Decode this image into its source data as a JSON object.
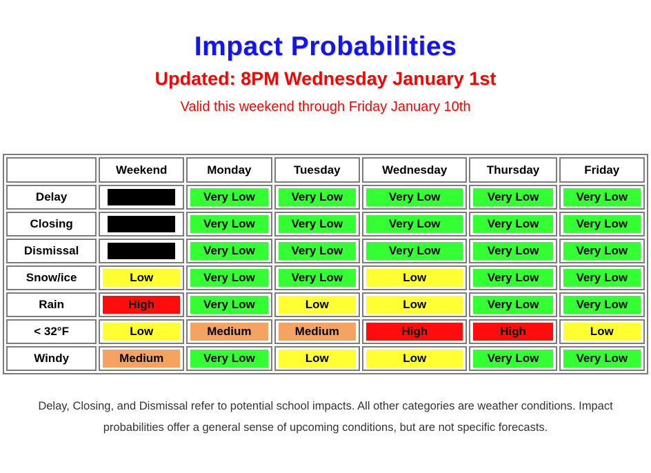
{
  "header": {
    "title": "Impact Probabilities",
    "updated": "Updated: 8PM Wednesday January 1st",
    "valid": "Valid this weekend through Friday January 10th"
  },
  "colors": {
    "title_blue": "#1414ee",
    "subtitle_red": "#ff0000",
    "very_low": "#33ff33",
    "low": "#ffff33",
    "medium": "#f4a460",
    "high": "#ff0d0d",
    "blackout": "#000000",
    "table_border": "#7b7b7b"
  },
  "chart_data": {
    "type": "table",
    "title": "Impact Probabilities",
    "subtitle": "Updated: 8PM Wednesday January 1st",
    "note": "Valid this weekend through Friday January 10th",
    "legend": {
      "very_low": "Very Low",
      "low": "Low",
      "medium": "Medium",
      "high": "High",
      "blackout": "(blacked out)"
    },
    "columns": [
      "",
      "Weekend",
      "Monday",
      "Tuesday",
      "Wednesday",
      "Thursday",
      "Friday"
    ],
    "rows": [
      {
        "label": "Delay",
        "cells": [
          {
            "text": "",
            "level": "blackout"
          },
          {
            "text": "Very Low",
            "level": "very_low"
          },
          {
            "text": "Very Low",
            "level": "very_low"
          },
          {
            "text": "Very Low",
            "level": "very_low"
          },
          {
            "text": "Very Low",
            "level": "very_low"
          },
          {
            "text": "Very Low",
            "level": "very_low"
          }
        ]
      },
      {
        "label": "Closing",
        "cells": [
          {
            "text": "",
            "level": "blackout"
          },
          {
            "text": "Very Low",
            "level": "very_low"
          },
          {
            "text": "Very Low",
            "level": "very_low"
          },
          {
            "text": "Very Low",
            "level": "very_low"
          },
          {
            "text": "Very Low",
            "level": "very_low"
          },
          {
            "text": "Very Low",
            "level": "very_low"
          }
        ]
      },
      {
        "label": "Dismissal",
        "cells": [
          {
            "text": "",
            "level": "blackout"
          },
          {
            "text": "Very Low",
            "level": "very_low"
          },
          {
            "text": "Very Low",
            "level": "very_low"
          },
          {
            "text": "Very Low",
            "level": "very_low"
          },
          {
            "text": "Very Low",
            "level": "very_low"
          },
          {
            "text": "Very Low",
            "level": "very_low"
          }
        ]
      },
      {
        "label": "Snow/ice",
        "cells": [
          {
            "text": "Low",
            "level": "low"
          },
          {
            "text": "Very Low",
            "level": "very_low"
          },
          {
            "text": "Very Low",
            "level": "very_low"
          },
          {
            "text": "Low",
            "level": "low"
          },
          {
            "text": "Very Low",
            "level": "very_low"
          },
          {
            "text": "Very Low",
            "level": "very_low"
          }
        ]
      },
      {
        "label": "Rain",
        "cells": [
          {
            "text": "High",
            "level": "high"
          },
          {
            "text": "Very Low",
            "level": "very_low"
          },
          {
            "text": "Low",
            "level": "low"
          },
          {
            "text": "Low",
            "level": "low"
          },
          {
            "text": "Very Low",
            "level": "very_low"
          },
          {
            "text": "Very Low",
            "level": "very_low"
          }
        ]
      },
      {
        "label": "< 32°F",
        "cells": [
          {
            "text": "Low",
            "level": "low"
          },
          {
            "text": "Medium",
            "level": "medium"
          },
          {
            "text": "Medium",
            "level": "medium"
          },
          {
            "text": "High",
            "level": "high"
          },
          {
            "text": "High",
            "level": "high"
          },
          {
            "text": "Low",
            "level": "low"
          }
        ]
      },
      {
        "label": "Windy",
        "cells": [
          {
            "text": "Medium",
            "level": "medium"
          },
          {
            "text": "Very Low",
            "level": "very_low"
          },
          {
            "text": "Low",
            "level": "low"
          },
          {
            "text": "Low",
            "level": "low"
          },
          {
            "text": "Very Low",
            "level": "very_low"
          },
          {
            "text": "Very Low",
            "level": "very_low"
          }
        ]
      }
    ]
  },
  "footer": {
    "line1": "Delay, Closing, and Dismissal refer to potential school impacts. All other categories are weather conditions. Impact",
    "line2": "probabilities offer a general sense of upcoming conditions, but are not specific forecasts."
  }
}
